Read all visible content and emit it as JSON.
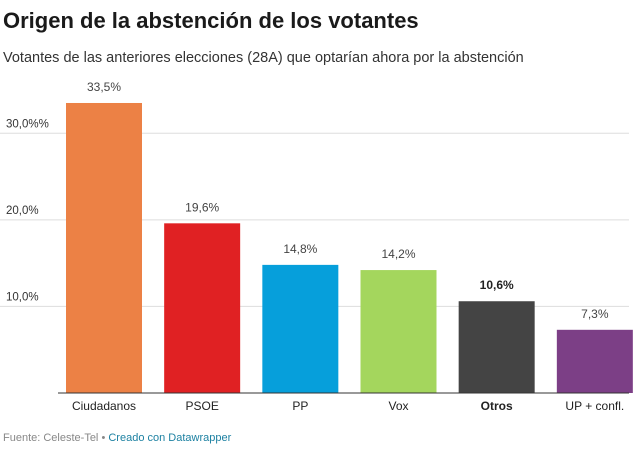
{
  "header": {
    "title": "Origen de la abstención de los votantes",
    "subtitle": "Votantes de las anteriores elecciones (28A) que optarían ahora por la abstención"
  },
  "footer": {
    "source": "Fuente: Celeste-Tel",
    "separator": " • ",
    "credit": "Creado con Datawrapper"
  },
  "chart_data": {
    "type": "bar",
    "categories": [
      "Ciudadanos",
      "PSOE",
      "PP",
      "Vox",
      "Otros",
      "UP + confl."
    ],
    "values": [
      33.5,
      19.6,
      14.8,
      14.2,
      10.6,
      7.3
    ],
    "value_labels": [
      "33,5%",
      "19,6%",
      "14,8%",
      "14,2%",
      "10,6%",
      "7,3%"
    ],
    "colors": [
      "#ec8145",
      "#e02123",
      "#069fdb",
      "#a4d65d",
      "#444444",
      "#7c3f86"
    ],
    "highlight_category": "Otros",
    "yticks": [
      10,
      20,
      30
    ],
    "ytick_labels": [
      "10,0%",
      "20,0%",
      "30,0%%"
    ],
    "ylim": [
      0,
      35
    ],
    "grid": true,
    "legend": "none",
    "title": "Origen de la abstención de los votantes",
    "xlabel": "",
    "ylabel": ""
  }
}
